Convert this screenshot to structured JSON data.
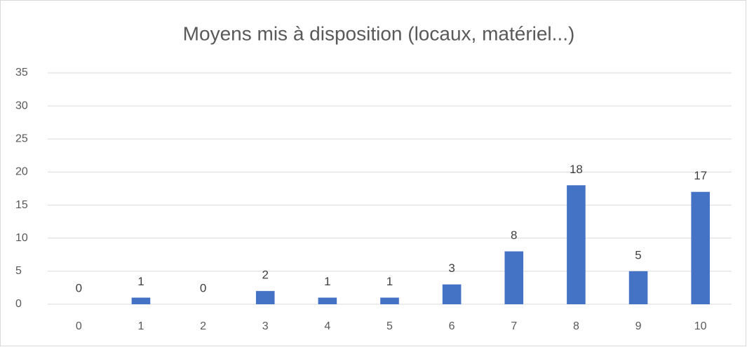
{
  "chart_data": {
    "type": "bar",
    "title": "Moyens mis à disposition (locaux, matériel...)",
    "categories": [
      "0",
      "1",
      "2",
      "3",
      "4",
      "5",
      "6",
      "7",
      "8",
      "9",
      "10"
    ],
    "values": [
      0,
      1,
      0,
      2,
      1,
      1,
      3,
      8,
      18,
      5,
      17
    ],
    "color": "#4472c4",
    "ylim": [
      0,
      35
    ],
    "yticks": [
      0,
      5,
      10,
      15,
      20,
      25,
      30,
      35
    ],
    "grid": true
  }
}
